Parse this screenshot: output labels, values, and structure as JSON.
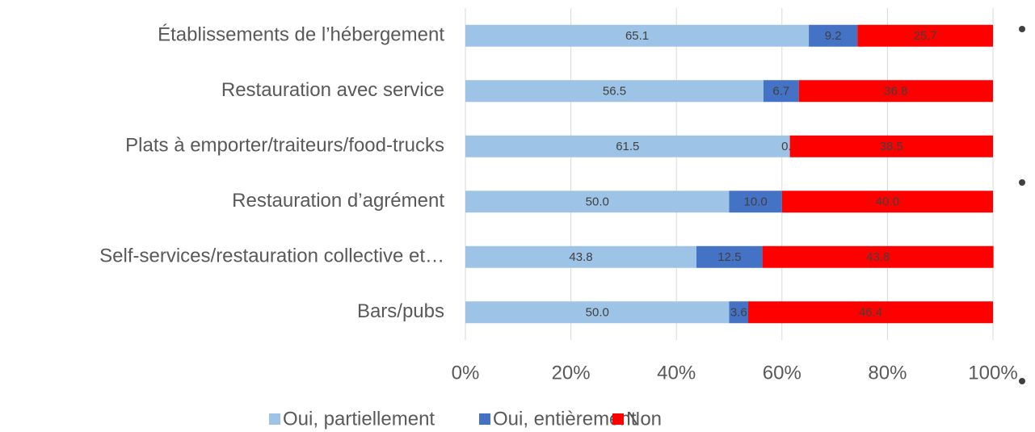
{
  "chart_data": {
    "type": "stacked-barh",
    "categories": [
      "Établissements de l’hébergement",
      "Restauration avec service",
      "Plats à emporter/traiteurs/food-trucks",
      "Restauration d’agrément",
      "Self-services/restauration collective et…",
      "Bars/pubs"
    ],
    "series": [
      {
        "name": "Oui, partiellement",
        "color": "#9dc3e6",
        "values": [
          65.1,
          56.5,
          61.5,
          50,
          43.8,
          50
        ],
        "value_labels": [
          "65.1",
          "56.5",
          "61.5",
          "50.0",
          "43.8",
          "50.0"
        ]
      },
      {
        "name": "Oui, entièrement",
        "color": "#4472c4",
        "values": [
          9.2,
          6.7,
          0,
          10,
          12.5,
          3.6
        ],
        "value_labels": [
          "9.2",
          "6.7",
          "0.0",
          "10.0",
          "12.5",
          "3.6"
        ]
      },
      {
        "name": "Non",
        "color": "#ff0000",
        "values": [
          25.7,
          36.8,
          38.5,
          40,
          43.8,
          46.4
        ],
        "value_labels": [
          "25.7",
          "36.8",
          "38.5",
          "40.0",
          "43.8",
          "46.4"
        ]
      }
    ],
    "xlim": [
      0,
      100
    ],
    "xticks": [
      {
        "value": 0,
        "label": "0%"
      },
      {
        "value": 20,
        "label": "20%"
      },
      {
        "value": 40,
        "label": "40%"
      },
      {
        "value": 60,
        "label": "60%"
      },
      {
        "value": 80,
        "label": "80%"
      },
      {
        "value": 100,
        "label": "100%"
      }
    ],
    "grid": true,
    "legend": "bottom"
  }
}
